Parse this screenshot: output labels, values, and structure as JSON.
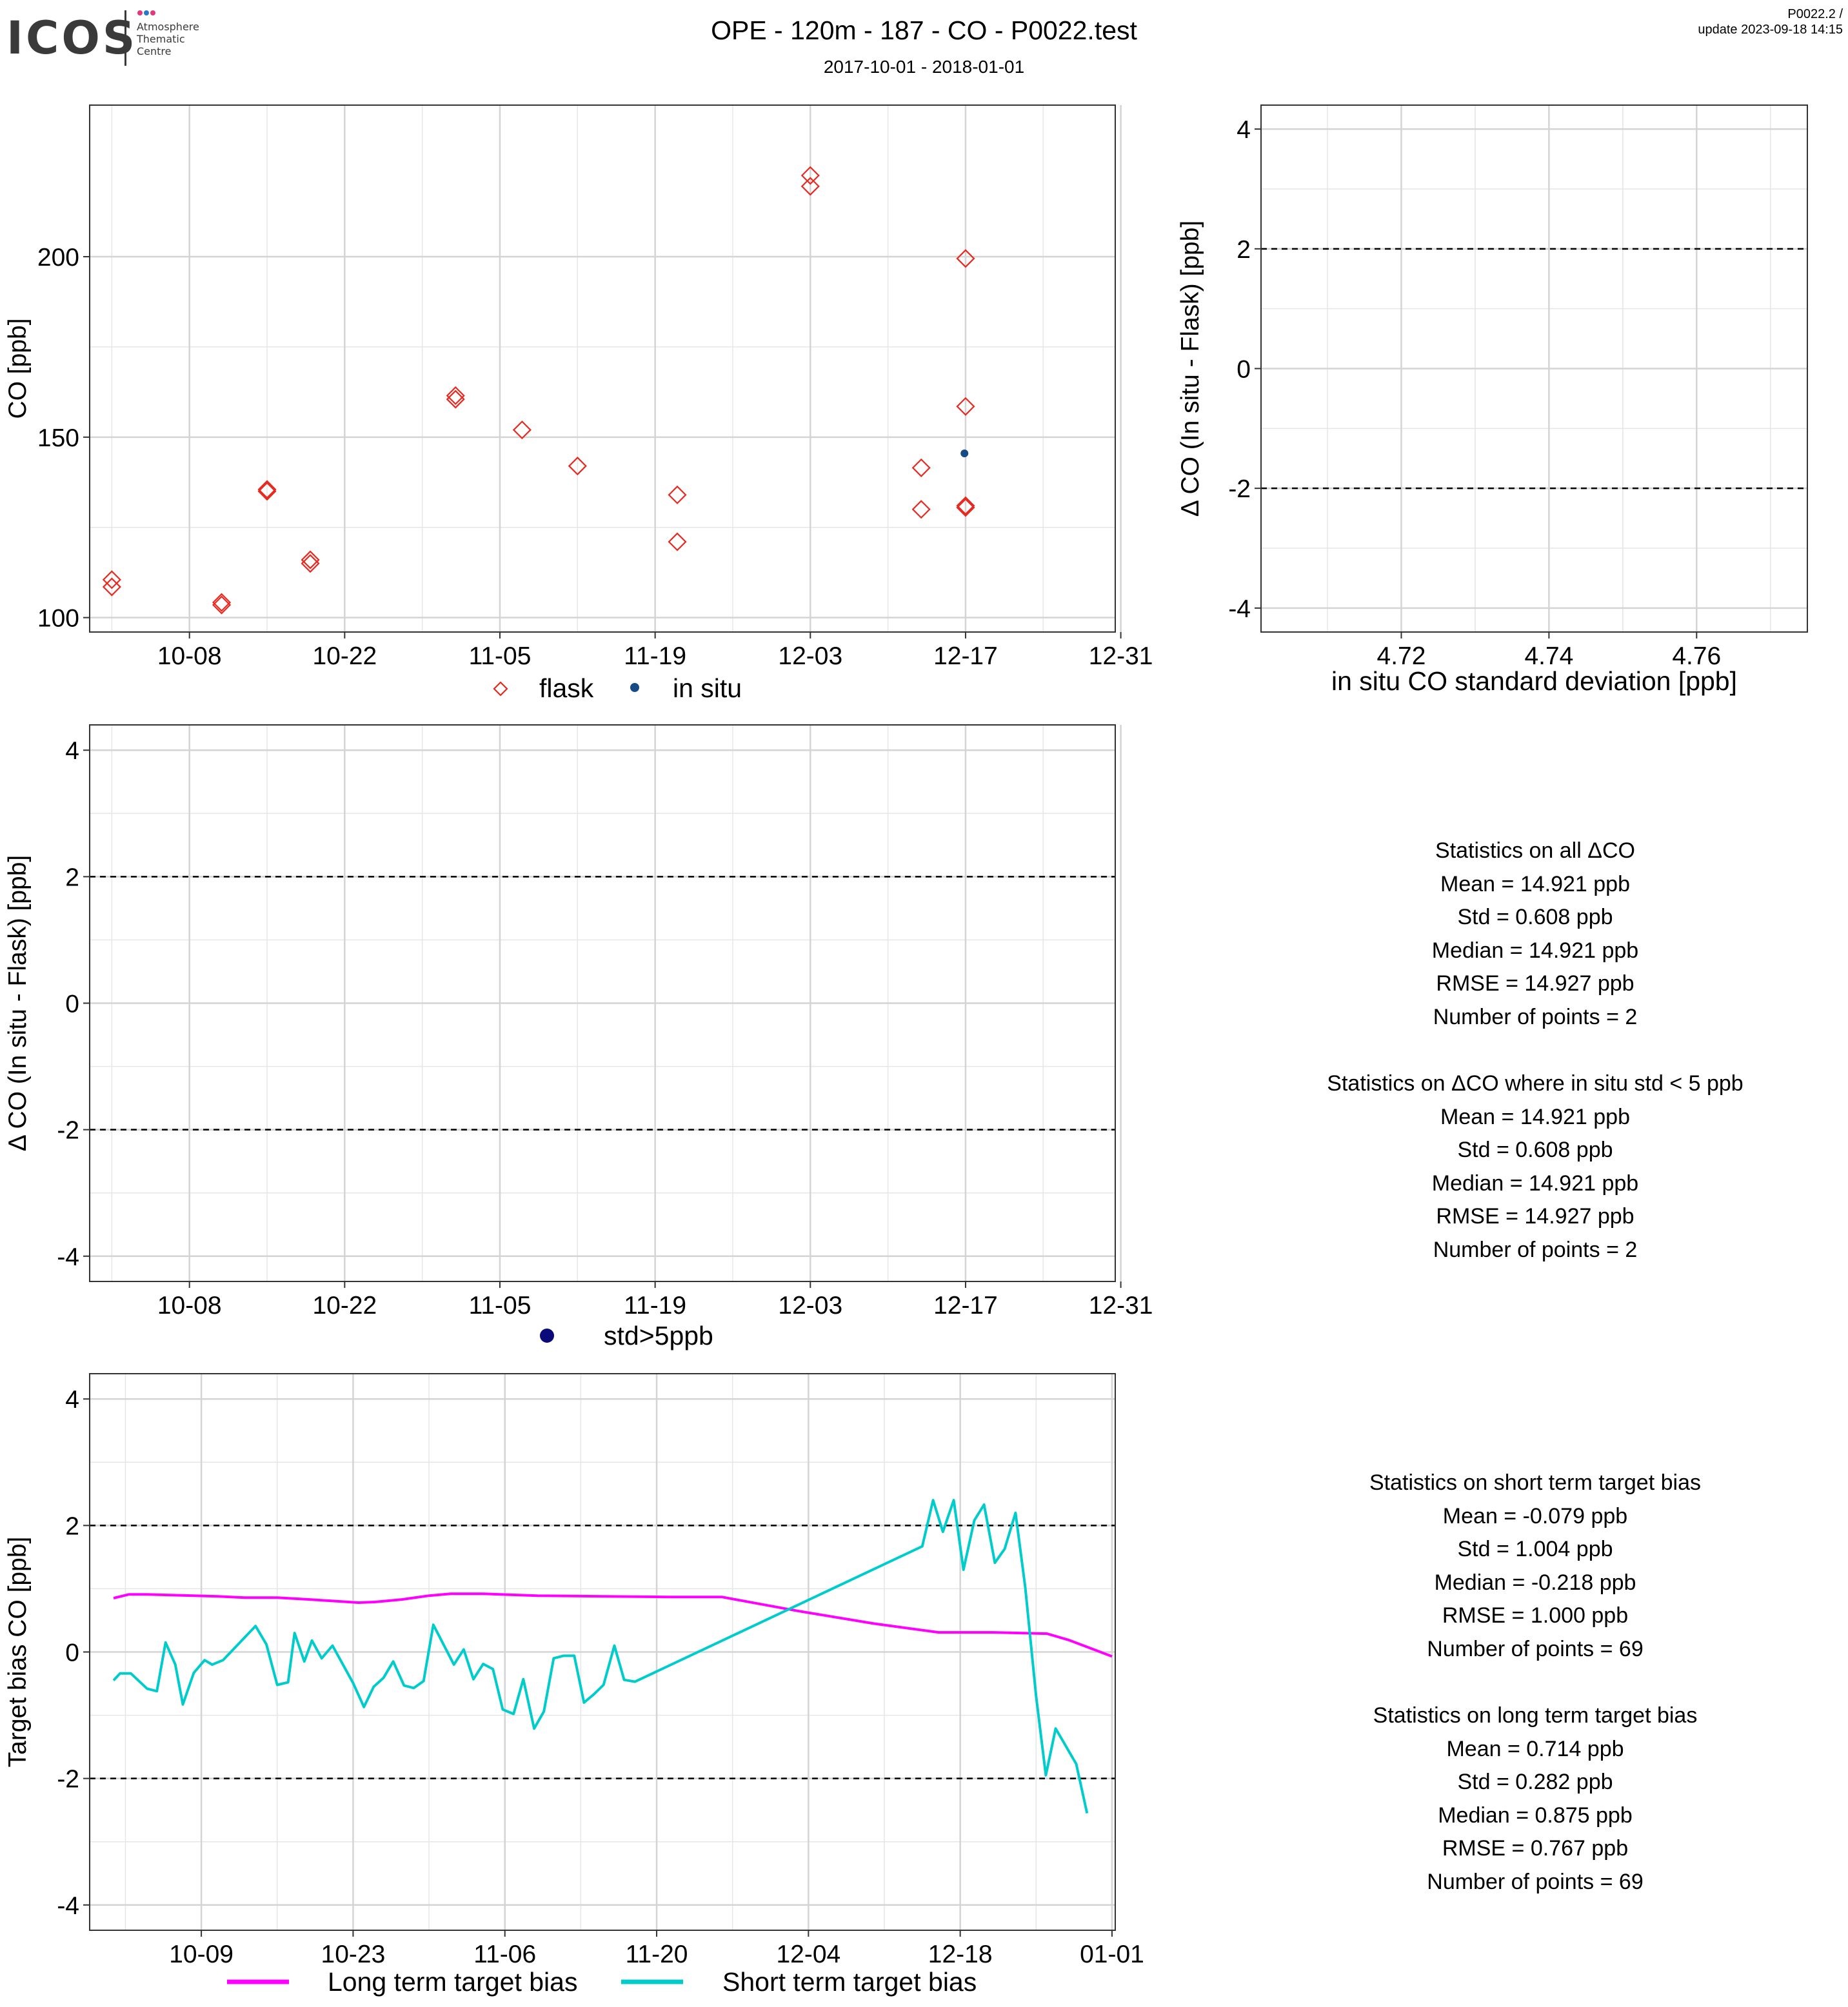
{
  "header": {
    "title": "OPE - 120m - 187 - CO - P0022.test",
    "subtitle": "2017-10-01 - 2018-01-01",
    "version_line1": "P0022.2 /",
    "version_line2": "update  2023-09-18 14:15",
    "logo_word": "ICOS",
    "logo_sub1": "Atmosphere",
    "logo_sub2": "Thematic",
    "logo_sub3": "Centre"
  },
  "colors": {
    "flask": "#e8281e",
    "in_situ": "#164a86",
    "std_gt5": "#0a0a7a",
    "long_term": "#ff00ff",
    "short_term": "#00cccc",
    "grid": "#e6e6e6"
  },
  "stats_all": {
    "heading": "Statistics on all ΔCO",
    "mean": "Mean =  14.921 ppb",
    "std": "Std =  0.608 ppb",
    "median": "Median =  14.921 ppb",
    "rmse": "RMSE =  14.927 ppb",
    "n": "Number of points =  2"
  },
  "stats_filtered": {
    "heading": "Statistics on ΔCO where in situ std < 5 ppb",
    "mean": "Mean =  14.921 ppb",
    "std": "Std =  0.608 ppb",
    "median": "Median =  14.921 ppb",
    "rmse": "RMSE =  14.927 ppb",
    "n": "Number of points =  2"
  },
  "stats_short": {
    "heading": "Statistics on short term target bias",
    "mean": "Mean =  -0.079 ppb",
    "std": "Std =  1.004 ppb",
    "median": "Median =  -0.218 ppb",
    "rmse": "RMSE =  1.000 ppb",
    "n": "Number of points =  69"
  },
  "stats_long": {
    "heading": "Statistics on long term target bias",
    "mean": "Mean =  0.714 ppb",
    "std": "Std =  0.282 ppb",
    "median": "Median =  0.875 ppb",
    "rmse": "RMSE =  0.767 ppb",
    "n": "Number of points =  69"
  },
  "chart_data": [
    {
      "id": "co_timeseries",
      "type": "scatter",
      "ylabel": "CO [ppb]",
      "xlabel": "",
      "x_start": "2017-09-29",
      "xlim_days": [
        0,
        92.5
      ],
      "ylim": [
        96,
        242
      ],
      "x_ticks": [
        {
          "label": "10-08",
          "day": 9
        },
        {
          "label": "10-22",
          "day": 23
        },
        {
          "label": "11-05",
          "day": 37
        },
        {
          "label": "11-19",
          "day": 51
        },
        {
          "label": "12-03",
          "day": 65
        },
        {
          "label": "12-17",
          "day": 79
        },
        {
          "label": "12-31",
          "day": 93
        }
      ],
      "y_ticks": [
        100,
        150,
        200
      ],
      "grid": true,
      "legend": "bottom",
      "series": [
        {
          "name": "flask",
          "marker": "diamond-open",
          "points": [
            [
              2.0,
              110.5
            ],
            [
              2.0,
              108.5
            ],
            [
              11.9,
              104.2
            ],
            [
              11.9,
              103.5
            ],
            [
              16.0,
              135.5
            ],
            [
              16.0,
              135.0
            ],
            [
              19.9,
              116.0
            ],
            [
              19.9,
              115.0
            ],
            [
              33.0,
              161.5
            ],
            [
              33.0,
              160.5
            ],
            [
              39.0,
              152.0
            ],
            [
              44.0,
              142.0
            ],
            [
              53.0,
              134.0
            ],
            [
              53.0,
              121.0
            ],
            [
              65.0,
              222.5
            ],
            [
              65.0,
              219.5
            ],
            [
              75.0,
              141.5
            ],
            [
              75.0,
              130.0
            ],
            [
              79.0,
              199.5
            ],
            [
              79.0,
              158.5
            ],
            [
              79.0,
              131.0
            ],
            [
              79.0,
              130.5
            ]
          ]
        },
        {
          "name": "in situ",
          "marker": "dot",
          "points": [
            [
              78.9,
              145.5
            ]
          ]
        }
      ]
    },
    {
      "id": "delta_vs_std",
      "type": "scatter",
      "xlabel": "in situ CO standard deviation [ppb]",
      "ylabel": "Δ CO (In situ - Flask) [ppb]",
      "xlim": [
        4.701,
        4.775
      ],
      "ylim": [
        -4.4,
        4.4
      ],
      "x_ticks": [
        4.72,
        4.74,
        4.76
      ],
      "y_ticks": [
        -4,
        -2,
        0,
        2,
        4
      ],
      "hlines": [
        -2,
        2
      ],
      "grid": true,
      "points": []
    },
    {
      "id": "delta_timeseries",
      "type": "scatter",
      "ylabel": "Δ CO (In situ - Flask) [ppb]",
      "xlim_days": [
        0,
        92.5
      ],
      "ylim": [
        -4.4,
        4.4
      ],
      "x_ticks": [
        {
          "label": "10-08",
          "day": 9
        },
        {
          "label": "10-22",
          "day": 23
        },
        {
          "label": "11-05",
          "day": 37
        },
        {
          "label": "11-19",
          "day": 51
        },
        {
          "label": "12-03",
          "day": 65
        },
        {
          "label": "12-17",
          "day": 79
        },
        {
          "label": "12-31",
          "day": 93
        }
      ],
      "y_ticks": [
        -4,
        -2,
        0,
        2,
        4
      ],
      "hlines": [
        -2,
        2
      ],
      "grid": true,
      "legend": "bottom",
      "series": [
        {
          "name": "std>5ppb",
          "marker": "dot",
          "points": []
        }
      ]
    },
    {
      "id": "target_bias",
      "type": "line",
      "ylabel": "Target bias CO [ppb]",
      "x_start": "2017-10-01",
      "xlim_days": [
        -2.3,
        92.3
      ],
      "ylim": [
        -4.4,
        4.4
      ],
      "x_ticks": [
        {
          "label": "10-09",
          "day": 8
        },
        {
          "label": "10-23",
          "day": 22
        },
        {
          "label": "11-06",
          "day": 36
        },
        {
          "label": "11-20",
          "day": 50
        },
        {
          "label": "12-04",
          "day": 64
        },
        {
          "label": "12-18",
          "day": 78
        },
        {
          "label": "01-01",
          "day": 92
        }
      ],
      "y_ticks": [
        -4,
        -2,
        0,
        2,
        4
      ],
      "hlines": [
        -2,
        2
      ],
      "grid": true,
      "legend": "bottom",
      "series": [
        {
          "name": "Long term target bias",
          "points": [
            [
              -0.1,
              0.85
            ],
            [
              1.3,
              0.91
            ],
            [
              3.0,
              0.91
            ],
            [
              9.5,
              0.88
            ],
            [
              12.0,
              0.86
            ],
            [
              15.0,
              0.86
            ],
            [
              18.0,
              0.83
            ],
            [
              22.5,
              0.78
            ],
            [
              24.0,
              0.79
            ],
            [
              26.5,
              0.83
            ],
            [
              29.0,
              0.89
            ],
            [
              31.0,
              0.92
            ],
            [
              34.0,
              0.92
            ],
            [
              39.0,
              0.89
            ],
            [
              45.0,
              0.88
            ],
            [
              51.0,
              0.87
            ],
            [
              56.0,
              0.87
            ],
            [
              63.0,
              0.65
            ],
            [
              70.0,
              0.45
            ],
            [
              76.0,
              0.31
            ],
            [
              81.0,
              0.31
            ],
            [
              86.0,
              0.29
            ],
            [
              88.0,
              0.19
            ],
            [
              92.0,
              -0.07
            ]
          ]
        },
        {
          "name": "Short term target bias",
          "points": [
            [
              -0.1,
              -0.45
            ],
            [
              0.5,
              -0.34
            ],
            [
              1.5,
              -0.34
            ],
            [
              3.0,
              -0.58
            ],
            [
              3.9,
              -0.62
            ],
            [
              4.7,
              0.15
            ],
            [
              5.6,
              -0.2
            ],
            [
              6.3,
              -0.83
            ],
            [
              7.3,
              -0.33
            ],
            [
              8.3,
              -0.13
            ],
            [
              9.0,
              -0.2
            ],
            [
              10.0,
              -0.13
            ],
            [
              13.0,
              0.41
            ],
            [
              14.0,
              0.12
            ],
            [
              15.0,
              -0.52
            ],
            [
              16.0,
              -0.48
            ],
            [
              16.6,
              0.3
            ],
            [
              17.5,
              -0.15
            ],
            [
              18.2,
              0.18
            ],
            [
              19.1,
              -0.1
            ],
            [
              20.1,
              0.1
            ],
            [
              22.0,
              -0.49
            ],
            [
              23.0,
              -0.87
            ],
            [
              23.9,
              -0.55
            ],
            [
              24.8,
              -0.41
            ],
            [
              25.7,
              -0.15
            ],
            [
              26.7,
              -0.53
            ],
            [
              27.6,
              -0.57
            ],
            [
              28.5,
              -0.46
            ],
            [
              29.4,
              0.43
            ],
            [
              31.3,
              -0.2
            ],
            [
              32.2,
              0.04
            ],
            [
              33.1,
              -0.43
            ],
            [
              34.0,
              -0.19
            ],
            [
              34.9,
              -0.27
            ],
            [
              35.8,
              -0.91
            ],
            [
              36.8,
              -0.98
            ],
            [
              37.7,
              -0.43
            ],
            [
              38.7,
              -1.21
            ],
            [
              39.6,
              -0.94
            ],
            [
              40.5,
              -0.1
            ],
            [
              41.4,
              -0.06
            ],
            [
              42.4,
              -0.06
            ],
            [
              43.3,
              -0.8
            ],
            [
              44.2,
              -0.67
            ],
            [
              45.1,
              -0.52
            ],
            [
              46.1,
              0.1
            ],
            [
              47.0,
              -0.44
            ],
            [
              48.0,
              -0.47
            ],
            [
              74.5,
              1.67
            ],
            [
              75.5,
              2.4
            ],
            [
              76.4,
              1.9
            ],
            [
              77.4,
              2.4
            ],
            [
              78.3,
              1.3
            ],
            [
              79.3,
              2.08
            ],
            [
              80.2,
              2.33
            ],
            [
              81.2,
              1.41
            ],
            [
              82.1,
              1.63
            ],
            [
              83.1,
              2.2
            ],
            [
              84.0,
              1.02
            ],
            [
              85.0,
              -0.7
            ],
            [
              85.9,
              -1.95
            ],
            [
              86.8,
              -1.21
            ],
            [
              88.7,
              -1.77
            ],
            [
              89.7,
              -2.55
            ]
          ]
        }
      ]
    }
  ]
}
